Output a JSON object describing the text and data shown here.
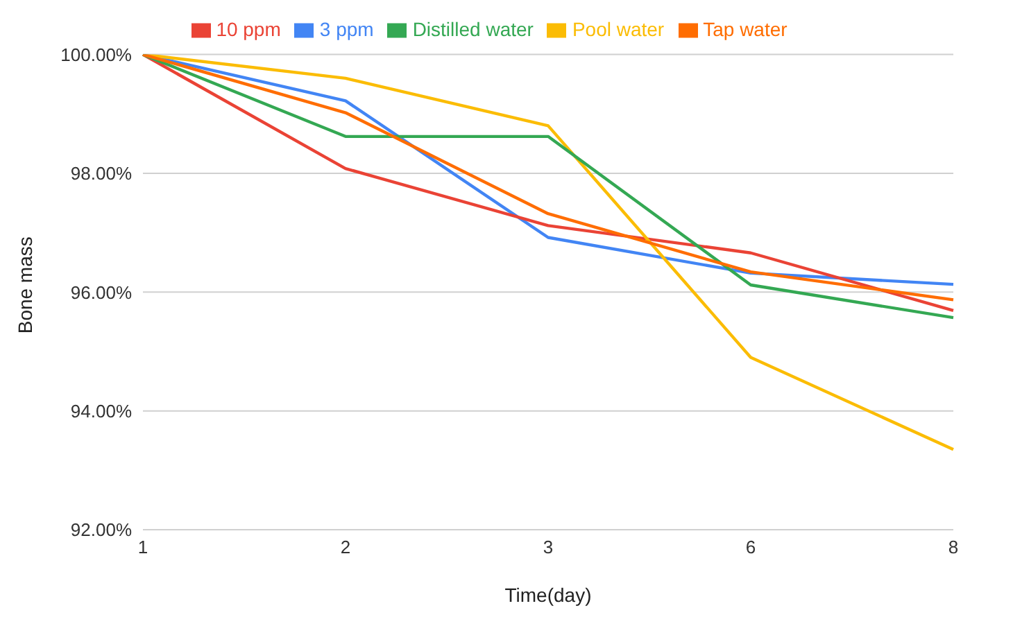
{
  "chart_data": {
    "type": "line",
    "xlabel": "Time(day)",
    "ylabel": "Bone mass",
    "categories": [
      "1",
      "2",
      "3",
      "6",
      "8"
    ],
    "series": [
      {
        "name": "3 ppm",
        "color": "#4285f4",
        "values": [
          100,
          99.22,
          96.92,
          96.32,
          96.13
        ]
      },
      {
        "name": "10 ppm",
        "color": "#ea4335",
        "values": [
          100,
          98.08,
          97.12,
          96.66,
          95.69
        ]
      },
      {
        "name": "Pool water",
        "color": "#fbbc04",
        "values": [
          100,
          99.6,
          98.8,
          94.9,
          93.35
        ]
      },
      {
        "name": "Distilled water",
        "color": "#34a853",
        "values": [
          100,
          98.62,
          98.62,
          96.12,
          95.57
        ]
      },
      {
        "name": "Tap water",
        "color": "#ff6d01",
        "values": [
          100,
          99.02,
          97.32,
          96.34,
          95.87
        ]
      }
    ],
    "ylim": [
      92,
      100
    ],
    "yticks": [
      {
        "value": 92,
        "label": "92.00%"
      },
      {
        "value": 94,
        "label": "94.00%"
      },
      {
        "value": 96,
        "label": "96.00%"
      },
      {
        "value": 98,
        "label": "98.00%"
      },
      {
        "value": 100,
        "label": "100.00%"
      }
    ],
    "grid": "y",
    "legend": "top",
    "marker": "none",
    "line_style": "solid"
  }
}
